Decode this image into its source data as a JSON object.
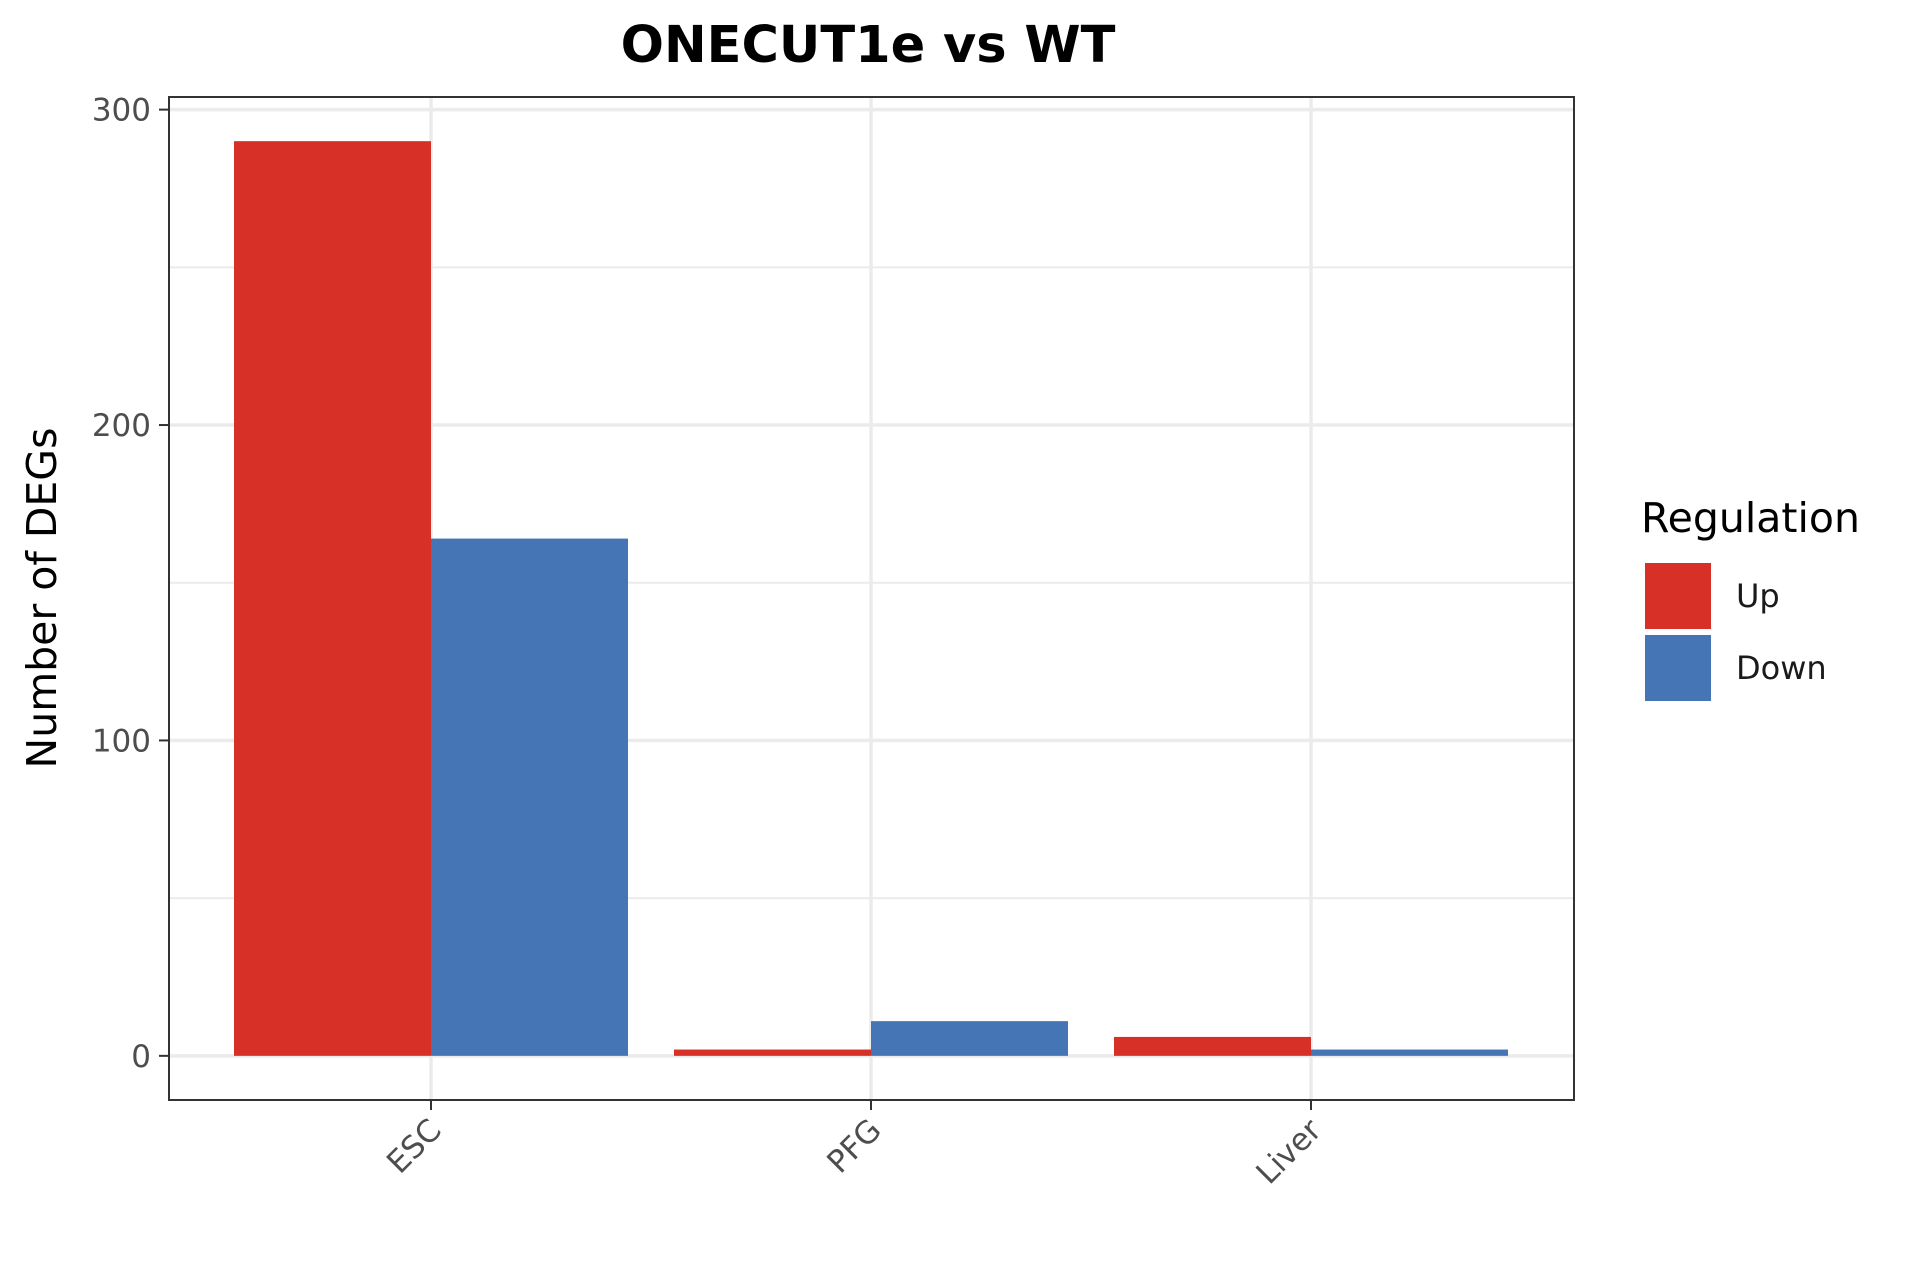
{
  "chart_data": {
    "type": "bar",
    "title": "ONECUT1e vs WT",
    "xlabel": "",
    "ylabel": "Number of DEGs",
    "categories": [
      "ESC",
      "PFG",
      "Liver"
    ],
    "series": [
      {
        "name": "Up",
        "color": "#d73027",
        "values": [
          290,
          2,
          6
        ]
      },
      {
        "name": "Down",
        "color": "#4575b4",
        "values": [
          164,
          11,
          2
        ]
      }
    ],
    "ylim": [
      -14,
      304
    ],
    "yticks": [
      "0",
      "100",
      "200",
      "300"
    ],
    "ytick_values": [
      0,
      100,
      200,
      300
    ],
    "grid": true,
    "legend": {
      "title": "Regulation",
      "position": "right",
      "entries": [
        "Up",
        "Down"
      ]
    },
    "xtick_rotation": -45
  }
}
